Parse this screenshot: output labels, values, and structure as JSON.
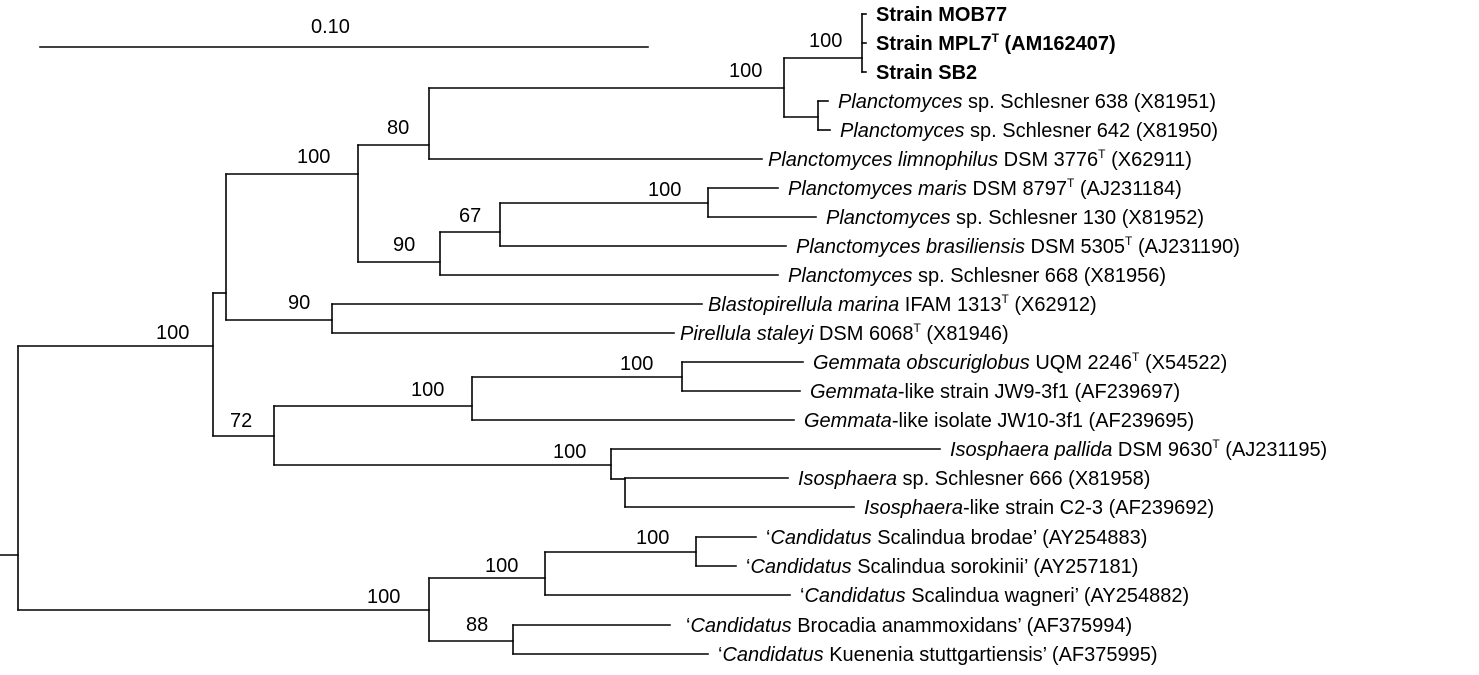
{
  "scale_bar": {
    "label": "0.10"
  },
  "bootstrap_values": [
    {
      "id": "b-mpl7",
      "value": "100"
    },
    {
      "id": "b-mpl7-s638",
      "value": "100"
    },
    {
      "id": "b-mpl7-limno",
      "value": "80"
    },
    {
      "id": "b-plancto",
      "value": "100"
    },
    {
      "id": "b-maris-130",
      "value": "100"
    },
    {
      "id": "b-maris-bras",
      "value": "67"
    },
    {
      "id": "b-maris-668",
      "value": "90"
    },
    {
      "id": "b-pirellula",
      "value": "90"
    },
    {
      "id": "b-root-upper",
      "value": "100"
    },
    {
      "id": "b-gemmata-like",
      "value": "100"
    },
    {
      "id": "b-gemmata",
      "value": "100"
    },
    {
      "id": "b-gem-iso",
      "value": "72"
    },
    {
      "id": "b-isosphaera",
      "value": "100"
    },
    {
      "id": "b-scal-brodae",
      "value": "100"
    },
    {
      "id": "b-scalindua",
      "value": "100"
    },
    {
      "id": "b-anammox",
      "value": "100"
    },
    {
      "id": "b-brocadia",
      "value": "88"
    }
  ],
  "taxa": [
    {
      "id": "t-mob77",
      "bold": true,
      "parts": [
        {
          "t": "Strain MOB77"
        }
      ]
    },
    {
      "id": "t-mpl7",
      "bold": true,
      "parts": [
        {
          "t": "Strain MPL7"
        },
        {
          "t": "T",
          "sup": true
        },
        {
          "t": " (AM162407)"
        }
      ]
    },
    {
      "id": "t-sb2",
      "bold": true,
      "parts": [
        {
          "t": "Strain SB2"
        }
      ]
    },
    {
      "id": "t-s638",
      "parts": [
        {
          "t": "Planctomyces",
          "i": true
        },
        {
          "t": " sp. Schlesner 638 (X81951)"
        }
      ]
    },
    {
      "id": "t-s642",
      "parts": [
        {
          "t": "Planctomyces",
          "i": true
        },
        {
          "t": " sp. Schlesner 642 (X81950)"
        }
      ]
    },
    {
      "id": "t-limno",
      "parts": [
        {
          "t": "Planctomyces limnophilus",
          "i": true
        },
        {
          "t": " DSM 3776"
        },
        {
          "t": "T",
          "sup": true
        },
        {
          "t": " (X62911)"
        }
      ]
    },
    {
      "id": "t-maris",
      "parts": [
        {
          "t": "Planctomyces maris",
          "i": true
        },
        {
          "t": " DSM 8797"
        },
        {
          "t": "T",
          "sup": true
        },
        {
          "t": " (AJ231184)"
        }
      ]
    },
    {
      "id": "t-s130",
      "parts": [
        {
          "t": "Planctomyces",
          "i": true
        },
        {
          "t": " sp. Schlesner 130 (X81952)"
        }
      ]
    },
    {
      "id": "t-bras",
      "parts": [
        {
          "t": "Planctomyces brasiliensis",
          "i": true
        },
        {
          "t": " DSM 5305"
        },
        {
          "t": "T",
          "sup": true
        },
        {
          "t": " (AJ231190)"
        }
      ]
    },
    {
      "id": "t-s668",
      "parts": [
        {
          "t": "Planctomyces",
          "i": true
        },
        {
          "t": " sp. Schlesner 668 (X81956)"
        }
      ]
    },
    {
      "id": "t-blasto",
      "parts": [
        {
          "t": "Blastopirellula marina",
          "i": true
        },
        {
          "t": " IFAM 1313"
        },
        {
          "t": "T",
          "sup": true
        },
        {
          "t": " (X62912)"
        }
      ]
    },
    {
      "id": "t-pirell",
      "parts": [
        {
          "t": "Pirellula staleyi",
          "i": true
        },
        {
          "t": " DSM 6068"
        },
        {
          "t": "T",
          "sup": true
        },
        {
          "t": " (X81946)"
        }
      ]
    },
    {
      "id": "t-gemobs",
      "parts": [
        {
          "t": "Gemmata obscuriglobus",
          "i": true
        },
        {
          "t": " UQM 2246"
        },
        {
          "t": "T",
          "sup": true
        },
        {
          "t": " (X54522)"
        }
      ]
    },
    {
      "id": "t-gemjw9",
      "parts": [
        {
          "t": "Gemmata",
          "i": true
        },
        {
          "t": "-like strain JW9-3f1 (AF239697)"
        }
      ]
    },
    {
      "id": "t-gemjw10",
      "parts": [
        {
          "t": "Gemmata",
          "i": true
        },
        {
          "t": "-like isolate JW10-3f1 (AF239695)"
        }
      ]
    },
    {
      "id": "t-isopal",
      "parts": [
        {
          "t": "Isosphaera pallida",
          "i": true
        },
        {
          "t": " DSM 9630"
        },
        {
          "t": "T",
          "sup": true
        },
        {
          "t": " (AJ231195)"
        }
      ]
    },
    {
      "id": "t-iso666",
      "parts": [
        {
          "t": "Isosphaera",
          "i": true
        },
        {
          "t": " sp. Schlesner 666 (X81958)"
        }
      ]
    },
    {
      "id": "t-isoc23",
      "parts": [
        {
          "t": "Isosphaera",
          "i": true
        },
        {
          "t": "-like strain C2-3 (AF239692)"
        }
      ]
    },
    {
      "id": "t-brodae",
      "parts": [
        {
          "t": "‘"
        },
        {
          "t": "Candidatus",
          "i": true
        },
        {
          "t": " Scalindua brodae’ (AY254883)"
        }
      ]
    },
    {
      "id": "t-sorok",
      "parts": [
        {
          "t": "‘"
        },
        {
          "t": "Candidatus",
          "i": true
        },
        {
          "t": " Scalindua sorokinii’ (AY257181)"
        }
      ]
    },
    {
      "id": "t-wagneri",
      "parts": [
        {
          "t": "‘"
        },
        {
          "t": "Candidatus",
          "i": true
        },
        {
          "t": " Scalindua wagneri’ (AY254882)"
        }
      ]
    },
    {
      "id": "t-brocadia",
      "parts": [
        {
          "t": "‘"
        },
        {
          "t": "Candidatus",
          "i": true
        },
        {
          "t": " Brocadia anammoxidans’ (AF375994)"
        }
      ]
    },
    {
      "id": "t-kuenenia",
      "parts": [
        {
          "t": "‘"
        },
        {
          "t": "Candidatus",
          "i": true
        },
        {
          "t": " Kuenenia stuttgartiensis’ (AF375995)"
        }
      ]
    }
  ]
}
